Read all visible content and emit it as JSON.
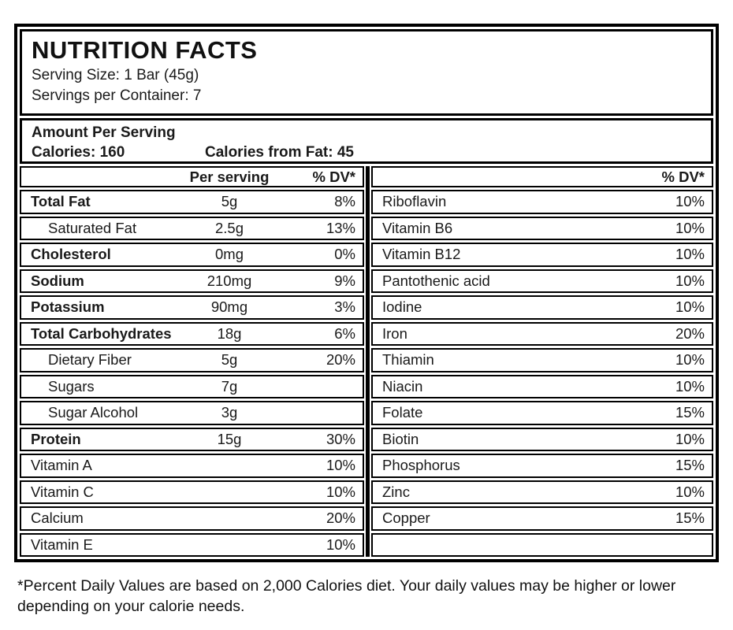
{
  "header": {
    "title": "NUTRITION FACTS",
    "serving_size": "Serving Size: 1 Bar (45g)",
    "servings_per_container": "Servings per Container: 7"
  },
  "amount_section": {
    "heading": "Amount Per Serving",
    "calories": "Calories: 160",
    "calories_from_fat": "Calories from Fat: 45"
  },
  "left_table": {
    "col_headers": {
      "per_serving": "Per serving",
      "dv": "% DV*"
    },
    "rows": [
      {
        "label": "Total Fat",
        "amount": "5g",
        "dv": "8%",
        "bold": true,
        "indent": false
      },
      {
        "label": "Saturated Fat",
        "amount": "2.5g",
        "dv": "13%",
        "bold": false,
        "indent": true
      },
      {
        "label": "Cholesterol",
        "amount": "0mg",
        "dv": "0%",
        "bold": true,
        "indent": false
      },
      {
        "label": "Sodium",
        "amount": "210mg",
        "dv": "9%",
        "bold": true,
        "indent": false
      },
      {
        "label": "Potassium",
        "amount": "90mg",
        "dv": "3%",
        "bold": true,
        "indent": false
      },
      {
        "label": "Total Carbohydrates",
        "amount": "18g",
        "dv": "6%",
        "bold": true,
        "indent": false
      },
      {
        "label": "Dietary Fiber",
        "amount": "5g",
        "dv": "20%",
        "bold": false,
        "indent": true
      },
      {
        "label": "Sugars",
        "amount": "7g",
        "dv": "",
        "bold": false,
        "indent": true
      },
      {
        "label": "Sugar Alcohol",
        "amount": "3g",
        "dv": "",
        "bold": false,
        "indent": true
      },
      {
        "label": "Protein",
        "amount": "15g",
        "dv": "30%",
        "bold": true,
        "indent": false
      },
      {
        "label": "Vitamin A",
        "amount": "",
        "dv": "10%",
        "bold": false,
        "indent": false
      },
      {
        "label": "Vitamin C",
        "amount": "",
        "dv": "10%",
        "bold": false,
        "indent": false
      },
      {
        "label": "Calcium",
        "amount": "",
        "dv": "20%",
        "bold": false,
        "indent": false
      },
      {
        "label": "Vitamin E",
        "amount": "",
        "dv": "10%",
        "bold": false,
        "indent": false
      }
    ]
  },
  "right_table": {
    "col_header_dv": "% DV*",
    "rows": [
      {
        "label": "Riboflavin",
        "dv": "10%"
      },
      {
        "label": "Vitamin B6",
        "dv": "10%"
      },
      {
        "label": "Vitamin B12",
        "dv": "10%"
      },
      {
        "label": "Pantothenic acid",
        "dv": "10%"
      },
      {
        "label": "Iodine",
        "dv": "10%"
      },
      {
        "label": "Iron",
        "dv": "20%"
      },
      {
        "label": "Thiamin",
        "dv": "10%"
      },
      {
        "label": "Niacin",
        "dv": "10%"
      },
      {
        "label": "Folate",
        "dv": "15%"
      },
      {
        "label": "Biotin",
        "dv": "10%"
      },
      {
        "label": "Phosphorus",
        "dv": "15%"
      },
      {
        "label": "Zinc",
        "dv": "10%"
      },
      {
        "label": "Copper",
        "dv": "15%"
      },
      {
        "label": "",
        "dv": ""
      }
    ]
  },
  "footnote": "*Percent Daily Values are based on 2,000 Calories diet. Your daily values may be higher or lower depending on your calorie needs.",
  "colors": {
    "border": "#000000",
    "text": "#1a1a1a",
    "background": "#ffffff"
  }
}
